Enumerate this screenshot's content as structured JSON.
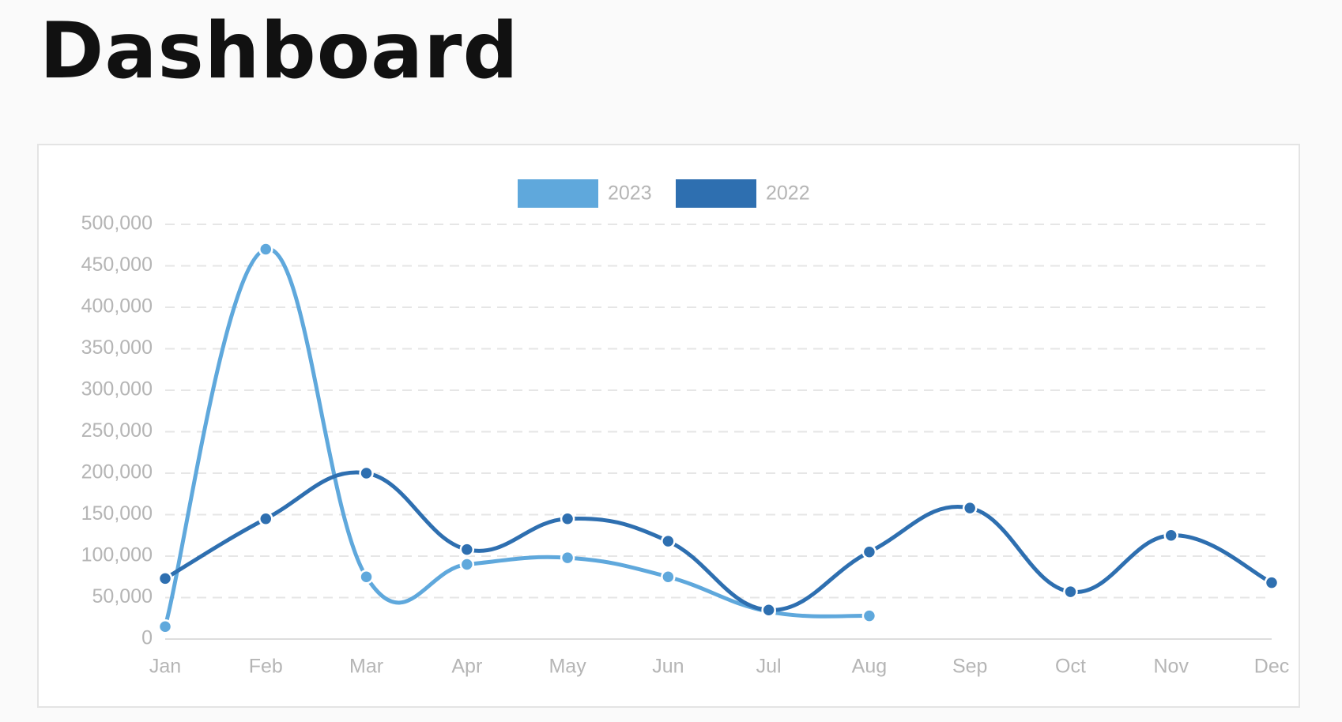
{
  "header": {
    "title": "Dashboard"
  },
  "chart_data": {
    "type": "line",
    "categories": [
      "Jan",
      "Feb",
      "Mar",
      "Apr",
      "May",
      "Jun",
      "Jul",
      "Aug",
      "Sep",
      "Oct",
      "Nov",
      "Dec"
    ],
    "series": [
      {
        "name": "2023",
        "color": "#5fa8dc",
        "values": [
          15000,
          470000,
          75000,
          90000,
          98000,
          75000,
          33000,
          28000,
          null,
          null,
          null,
          null
        ]
      },
      {
        "name": "2022",
        "color": "#2e6fb0",
        "values": [
          73000,
          145000,
          200000,
          108000,
          145000,
          118000,
          35000,
          105000,
          158000,
          57000,
          125000,
          68000
        ]
      }
    ],
    "ylim": [
      0,
      500000
    ],
    "yticks": [
      0,
      {
        "value": 50000,
        "label": "50,000"
      },
      {
        "value": 100000,
        "label": "100,000"
      },
      {
        "value": 150000,
        "label": "150,000"
      },
      {
        "value": 200000,
        "label": "200,000"
      },
      {
        "value": 250000,
        "label": "250,000"
      },
      {
        "value": 300000,
        "label": "300,000"
      },
      {
        "value": 350000,
        "label": "350,000"
      },
      {
        "value": 400000,
        "label": "400,000"
      },
      {
        "value": 450000,
        "label": "450,000"
      },
      {
        "value": 500000,
        "label": "500,000"
      }
    ],
    "grid": true,
    "legend": "top"
  }
}
